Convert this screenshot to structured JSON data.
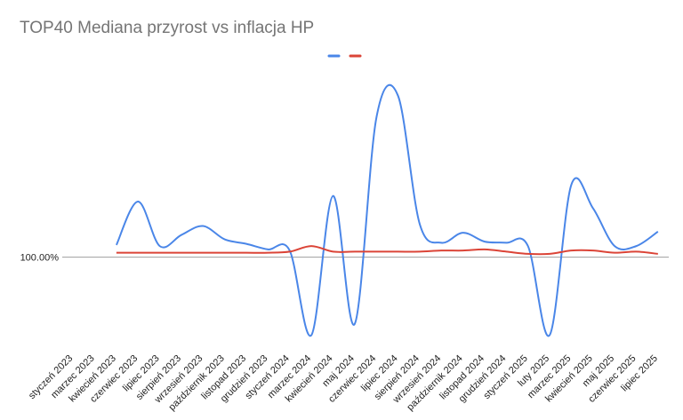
{
  "chart_data": {
    "type": "line",
    "title": "TOP40 Mediana przyrost vs inflacja HP",
    "xlabel": "",
    "ylabel": "",
    "baseline_label": "100.00%",
    "categories": [
      "styczeń 2023",
      "marzec 2023",
      "kwiecień 2023",
      "czerwiec 2023",
      "lipiec 2023",
      "sierpień 2023",
      "wrzesień 2023",
      "październik 2023",
      "listopad 2023",
      "grudzień 2023",
      "styczeń 2024",
      "marzec 2024",
      "kwiecień 2024",
      "maj 2024",
      "czerwiec 2024",
      "lipiec 2024",
      "sierpień 2024",
      "wrzesień 2024",
      "październik 2024",
      "listopad 2024",
      "grudzień 2024",
      "styczeń 2025",
      "luty 2025",
      "marzec 2025",
      "kwiecień 2025",
      "maj 2025",
      "czerwiec 2025",
      "lipiec 2025"
    ],
    "ylim": [
      92,
      116
    ],
    "legend_position": "top",
    "grid": false,
    "series": [
      {
        "color": "#4a86e8",
        "values": [
          null,
          null,
          101.1,
          105.0,
          101.0,
          102.0,
          102.8,
          101.6,
          101.2,
          100.7,
          100.6,
          93.0,
          105.5,
          94.0,
          112.5,
          114.5,
          103.0,
          101.3,
          102.2,
          101.4,
          101.3,
          101.0,
          93.0,
          106.5,
          104.4,
          101.0,
          101.0,
          102.3
        ]
      },
      {
        "color": "#db4437",
        "values": [
          null,
          null,
          100.4,
          100.4,
          100.4,
          100.4,
          100.4,
          100.4,
          100.4,
          100.4,
          100.5,
          101.0,
          100.5,
          100.5,
          100.5,
          100.5,
          100.5,
          100.6,
          100.6,
          100.7,
          100.5,
          100.3,
          100.3,
          100.6,
          100.6,
          100.4,
          100.5,
          100.3
        ]
      }
    ]
  }
}
